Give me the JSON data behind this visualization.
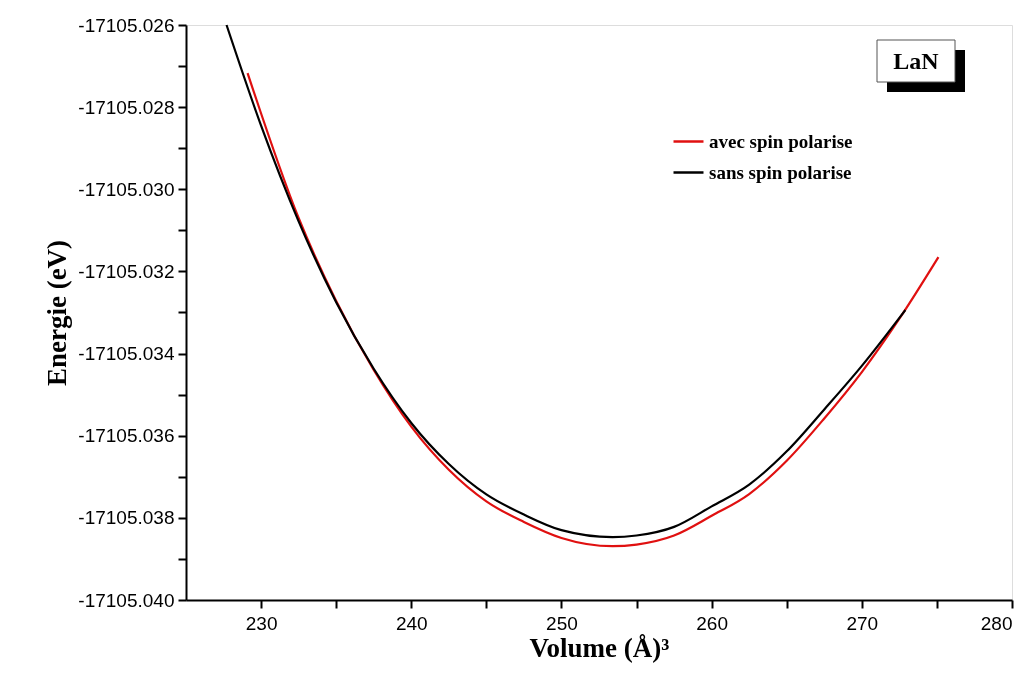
{
  "chart_data": {
    "type": "line",
    "xlabel": "Volume (Å)³",
    "ylabel": "Energie (eV)",
    "annotations": [
      "LaN"
    ],
    "xlim": [
      225,
      280
    ],
    "xticks": [
      230,
      {
        "value": 235,
        "label": null
      },
      240,
      {
        "value": 245,
        "label": null
      },
      250,
      {
        "value": 255,
        "label": null
      },
      260,
      {
        "value": 265,
        "label": null
      },
      270,
      {
        "value": 275,
        "label": null
      },
      280
    ],
    "ylim": [
      -17105.04,
      -17105.026
    ],
    "yticks": [
      {
        "value": -17105.04,
        "label": "-17105.040"
      },
      {
        "value": -17105.039,
        "label": null
      },
      {
        "value": -17105.038,
        "label": "-17105.038"
      },
      {
        "value": -17105.037,
        "label": null
      },
      {
        "value": -17105.036,
        "label": "-17105.036"
      },
      {
        "value": -17105.035,
        "label": null
      },
      {
        "value": -17105.034,
        "label": "-17105.034"
      },
      {
        "value": -17105.033,
        "label": null
      },
      {
        "value": -17105.032,
        "label": "-17105.032"
      },
      {
        "value": -17105.031,
        "label": null
      },
      {
        "value": -17105.03,
        "label": "-17105.030"
      },
      {
        "value": -17105.029,
        "label": null
      },
      {
        "value": -17105.028,
        "label": "-17105.028"
      },
      {
        "value": -17105.027,
        "label": null
      },
      {
        "value": -17105.026,
        "label": "-17105.026"
      }
    ],
    "legend": "top right",
    "grid": false,
    "marker": "none",
    "line_style": "solid",
    "series": [
      {
        "name": "avec spin polarise",
        "color": "#e01010",
        "x": [
          229.1,
          232.5,
          235,
          237.5,
          240,
          242.5,
          245,
          247.5,
          250,
          253.4,
          255,
          257.5,
          260,
          262.5,
          265,
          267.5,
          270,
          272.5,
          275.1
        ],
        "values": [
          -17105.02717,
          -17105.0307,
          -17105.03272,
          -17105.0344,
          -17105.03578,
          -17105.03683,
          -17105.0376,
          -17105.0381,
          -17105.03849,
          -17105.03869,
          -17105.03865,
          -17105.03843,
          -17105.03795,
          -17105.03742,
          -17105.03661,
          -17105.03558,
          -17105.03445,
          -17105.03315,
          -17105.03165
        ]
      },
      {
        "name": " sans spin polarise",
        "color": "#000000",
        "x": [
          227.7,
          230,
          232.5,
          235,
          237.5,
          240,
          242.5,
          245,
          247.5,
          250,
          253.4,
          255,
          257.5,
          260,
          262.5,
          265,
          267.5,
          270,
          272.9
        ],
        "values": [
          -17105.026,
          -17105.02845,
          -17105.03078,
          -17105.03275,
          -17105.03437,
          -17105.03569,
          -17105.03669,
          -17105.03743,
          -17105.03792,
          -17105.0383,
          -17105.03847,
          -17105.03843,
          -17105.03822,
          -17105.03772,
          -17105.03719,
          -17105.03638,
          -17105.03536,
          -17105.0343,
          -17105.03294
        ]
      }
    ]
  }
}
